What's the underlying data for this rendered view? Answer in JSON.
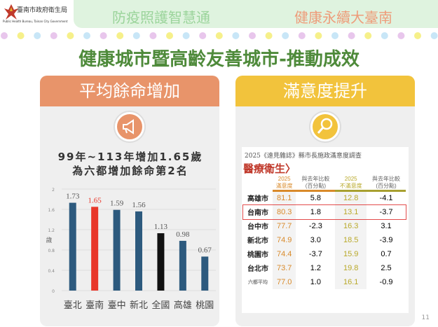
{
  "header": {
    "logo_text": "臺南市政府衛生局",
    "logo_en": "Public Health Bureau, Tainan City Government",
    "slogan_left": "防疫照護智慧通",
    "slogan_right": "健康永續大臺南"
  },
  "title": "健康城市暨高齡友善城市-推動成效",
  "left_card": {
    "heading": "平均餘命增加",
    "icon": "megaphone-icon",
    "subtitle_line1": "99年~113年增加1.65歲",
    "subtitle_line2": "為六都增加餘命第2名"
  },
  "right_card": {
    "heading": "滿意度提升",
    "icon": "magnifier-icon"
  },
  "chart_data": {
    "type": "bar",
    "categories": [
      "臺北",
      "臺南",
      "臺中",
      "新北",
      "全國",
      "高雄",
      "桃園"
    ],
    "values": [
      1.73,
      1.65,
      1.59,
      1.56,
      1.13,
      0.98,
      0.67
    ],
    "value_labels": [
      "1.73",
      "1.65",
      "1.59",
      "1.56",
      "1.13",
      "0.98",
      "0.67"
    ],
    "colors": [
      "#2d5a7e",
      "#e8372a",
      "#2d5a7e",
      "#2d5a7e",
      "#111111",
      "#2d5a7e",
      "#2d5a7e"
    ],
    "ylabel": "歲",
    "ylim": [
      0,
      2
    ],
    "yticks": [
      "0",
      "0.4",
      "0.8",
      "1.2",
      "1.6",
      "2"
    ],
    "grid": true
  },
  "survey": {
    "source": "2025《遠見雜誌》縣市長施政滿意度調查",
    "category": "醫療衛生〉",
    "columns": [
      [
        "2025",
        "滿意度"
      ],
      [
        "與去年比較",
        "(百分點)"
      ],
      [
        "2025",
        "不滿意度"
      ],
      [
        "與去年比較",
        "(百分點)"
      ]
    ],
    "rows": [
      [
        "高雄市",
        "81.1",
        "5.8",
        "12.8",
        "-4.1"
      ],
      [
        "台南市",
        "80.3",
        "1.8",
        "13.1",
        "-3.7"
      ],
      [
        "台中市",
        "77.7",
        "-2.3",
        "16.3",
        "3.1"
      ],
      [
        "新北市",
        "74.9",
        "3.0",
        "18.5",
        "-3.9"
      ],
      [
        "桃園市",
        "74.4",
        "-3.7",
        "15.9",
        "0.7"
      ],
      [
        "台北市",
        "73.7",
        "1.2",
        "19.8",
        "2.5"
      ],
      [
        "六都平均",
        "77.0",
        "1.0",
        "16.1",
        "-0.9"
      ]
    ],
    "highlight_row": "台南市"
  },
  "page_number": "11",
  "colors": {
    "orange_band": "#e8946a",
    "yellow_band": "#f2c33c",
    "title_green": "#4e8a3a"
  }
}
